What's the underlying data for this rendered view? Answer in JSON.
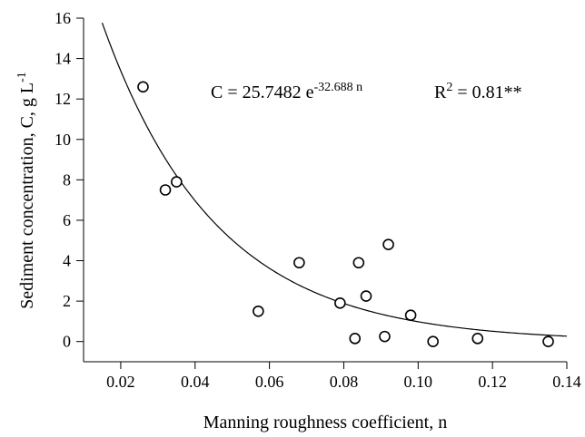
{
  "chart_data": {
    "type": "scatter",
    "title": "",
    "xlabel": "Manning roughness coefficient, n",
    "ylabel": {
      "main": "Sediment concentration, C, g L",
      "sup": "-1"
    },
    "xlim": [
      0.01,
      0.14
    ],
    "ylim": [
      -1,
      16
    ],
    "xticks": [
      0.02,
      0.04,
      0.06,
      0.08,
      0.1,
      0.12,
      0.14
    ],
    "xtick_labels": [
      "0.02",
      "0.04",
      "0.06",
      "0.08",
      "0.10",
      "0.12",
      "0.14"
    ],
    "yticks": [
      0,
      2,
      4,
      6,
      8,
      10,
      12,
      14,
      16
    ],
    "ytick_labels": [
      "0",
      "2",
      "4",
      "6",
      "8",
      "10",
      "12",
      "14",
      "16"
    ],
    "grid": false,
    "legend": "none",
    "points": [
      {
        "x": 0.026,
        "y": 12.6
      },
      {
        "x": 0.032,
        "y": 7.5
      },
      {
        "x": 0.035,
        "y": 7.9
      },
      {
        "x": 0.057,
        "y": 1.5
      },
      {
        "x": 0.068,
        "y": 3.9
      },
      {
        "x": 0.079,
        "y": 1.9
      },
      {
        "x": 0.083,
        "y": 0.15
      },
      {
        "x": 0.084,
        "y": 3.9
      },
      {
        "x": 0.086,
        "y": 2.25
      },
      {
        "x": 0.091,
        "y": 0.25
      },
      {
        "x": 0.092,
        "y": 4.8
      },
      {
        "x": 0.098,
        "y": 1.3
      },
      {
        "x": 0.104,
        "y": 0.0
      },
      {
        "x": 0.116,
        "y": 0.15
      },
      {
        "x": 0.135,
        "y": 0.0
      }
    ],
    "fit": {
      "model": "exponential",
      "a": 25.7482,
      "b": -32.688,
      "x_range": [
        0.01,
        0.14
      ]
    },
    "annotations": {
      "equation": {
        "lhs": "C = 25.7482 e",
        "exponent": "-32.688 n"
      },
      "r2": {
        "prefix": "R",
        "sup": "2",
        "suffix": " = 0.81**"
      }
    },
    "colors": {
      "axis": "#000000",
      "marker": "#000000",
      "fit_line": "#000000"
    }
  }
}
